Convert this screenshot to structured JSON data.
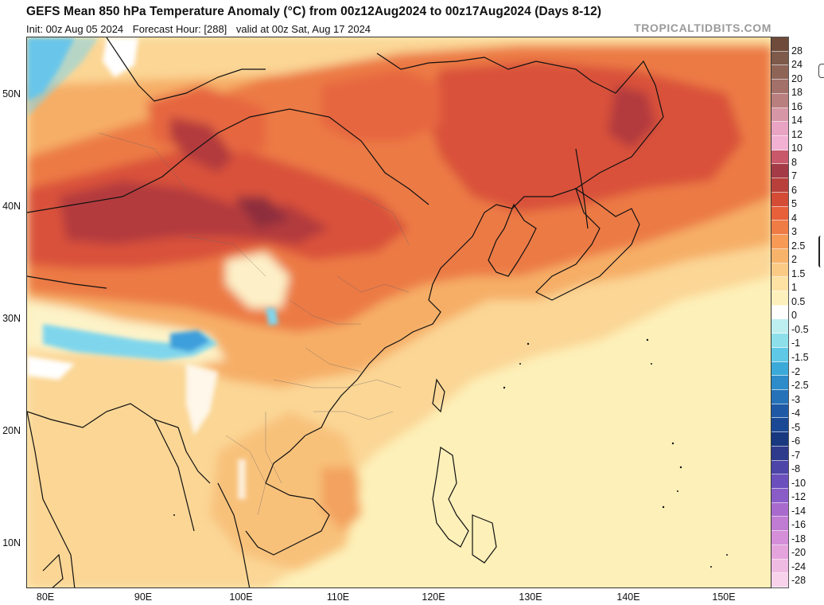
{
  "header": {
    "title": "GEFS Mean 850 hPa Temperature Anomaly (°C) from 00z12Aug2024 to 00z17Aug2024 (Days 8-12)",
    "init": "Init: 00z Aug 05 2024",
    "forecast_hour": "Forecast Hour: [288]",
    "valid": "valid at 00z Sat, Aug 17 2024",
    "brand": "TROPICALTIDBITS.COM"
  },
  "axes": {
    "latitudes": [
      "50N",
      "40N",
      "30N",
      "20N",
      "10N"
    ],
    "longitudes": [
      "80E",
      "90E",
      "100E",
      "110E",
      "120E",
      "130E",
      "140E",
      "150E"
    ]
  },
  "colorbar": {
    "labels": [
      "28",
      "24",
      "20",
      "18",
      "16",
      "14",
      "12",
      "10",
      "8",
      "7",
      "6",
      "5",
      "4",
      "3",
      "2.5",
      "2",
      "1.5",
      "1",
      "0.5",
      "0",
      "-0.5",
      "-1",
      "-1.5",
      "-2",
      "-2.5",
      "-3",
      "-4",
      "-5",
      "-6",
      "-7",
      "-8",
      "-10",
      "-12",
      "-14",
      "-16",
      "-18",
      "-20",
      "-24",
      "-28"
    ],
    "colors": [
      "#6e4b3b",
      "#7d5a4a",
      "#8e6457",
      "#a3706a",
      "#b97f7e",
      "#d696a6",
      "#e9a3c3",
      "#f2b0d2",
      "#c9586a",
      "#a33a45",
      "#b83f3a",
      "#d44c35",
      "#e8603a",
      "#f07c45",
      "#f69a56",
      "#f8b36a",
      "#fbcb86",
      "#fde2a4",
      "#fdf0bd",
      "#ffffff",
      "#bdeef0",
      "#8de0ea",
      "#5fc8e6",
      "#3caad8",
      "#2d8cc9",
      "#2672b8",
      "#1f59a6",
      "#1a4894",
      "#18387f",
      "#2e3a8c",
      "#4d45a8",
      "#6a4fbd",
      "#8a5cc8",
      "#a96ace",
      "#c07bd3",
      "#d58ed8",
      "#e5a3dd",
      "#f0bbe3",
      "#f7d2ea"
    ]
  },
  "legend_colors": {
    "bg": "#fdf0b9",
    "light_orange": "#fbd695",
    "orange": "#f6ae66",
    "red_orange": "#ec7a45",
    "red": "#d9513a",
    "dark_red": "#b33a3c",
    "maroon": "#8e2d3d",
    "blue": "#4fb3e6",
    "cyan": "#7fd6ec",
    "white": "#ffffff"
  }
}
